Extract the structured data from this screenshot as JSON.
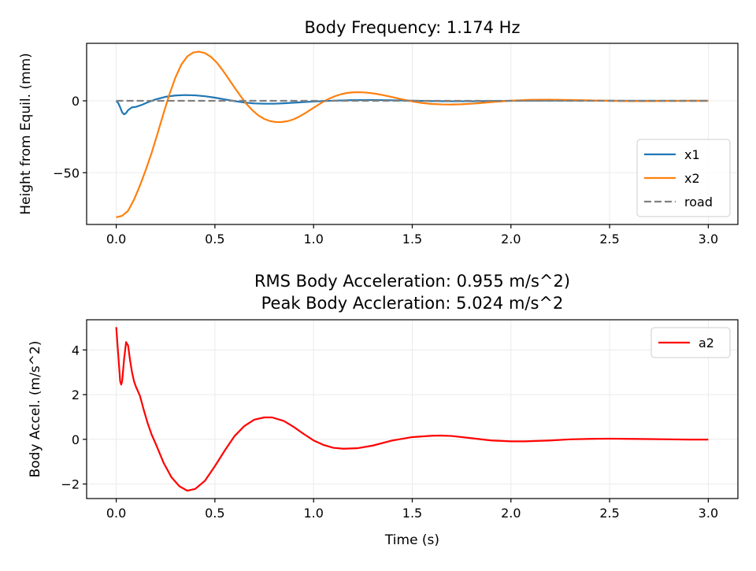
{
  "chart_data": [
    {
      "type": "line",
      "title": "Body Frequency: 1.174 Hz",
      "xlabel": "",
      "ylabel": "Height from Equil. (mm)",
      "xlim": [
        -0.15,
        3.15
      ],
      "ylim": [
        -86,
        40
      ],
      "xticks": [
        0.0,
        0.5,
        1.0,
        1.5,
        2.0,
        2.5,
        3.0
      ],
      "xtick_labels": [
        "0.0",
        "0.5",
        "1.0",
        "1.5",
        "2.0",
        "2.5",
        "3.0"
      ],
      "yticks": [
        -50,
        0
      ],
      "ytick_labels": [
        "−50",
        "0"
      ],
      "grid": true,
      "legend_position": "lower-right",
      "series": [
        {
          "name": "x1",
          "color": "#1f77b4",
          "dash": "solid",
          "x": [
            0,
            0.01,
            0.02,
            0.03,
            0.04,
            0.05,
            0.06,
            0.08,
            0.1,
            0.13,
            0.16,
            0.2,
            0.25,
            0.3,
            0.35,
            0.4,
            0.45,
            0.5,
            0.55,
            0.6,
            0.65,
            0.7,
            0.75,
            0.8,
            0.85,
            0.9,
            1.0,
            1.1,
            1.2,
            1.3,
            1.4,
            1.5,
            1.6,
            1.7,
            1.8,
            2.0,
            2.2,
            2.4,
            2.6,
            2.8,
            3.0
          ],
          "y": [
            0,
            -1.5,
            -4.5,
            -8,
            -9.4,
            -8.5,
            -6.5,
            -4.5,
            -4.2,
            -2.8,
            -1,
            1,
            2.8,
            3.7,
            4,
            3.8,
            3.2,
            2.2,
            1,
            -0.2,
            -1.2,
            -1.8,
            -2,
            -2,
            -1.7,
            -1.3,
            -0.5,
            0.1,
            0.5,
            0.6,
            0.4,
            0.1,
            -0.2,
            -0.3,
            -0.3,
            0,
            0.2,
            0.1,
            0,
            0,
            0
          ]
        },
        {
          "name": "x2",
          "color": "#ff7f0e",
          "dash": "solid",
          "x": [
            0,
            0.03,
            0.06,
            0.09,
            0.12,
            0.15,
            0.18,
            0.21,
            0.24,
            0.27,
            0.3,
            0.33,
            0.36,
            0.39,
            0.42,
            0.45,
            0.48,
            0.51,
            0.54,
            0.57,
            0.6,
            0.63,
            0.66,
            0.69,
            0.72,
            0.75,
            0.78,
            0.81,
            0.84,
            0.87,
            0.9,
            0.93,
            0.96,
            0.99,
            1.02,
            1.05,
            1.08,
            1.11,
            1.14,
            1.17,
            1.2,
            1.23,
            1.26,
            1.29,
            1.32,
            1.35,
            1.4,
            1.45,
            1.5,
            1.55,
            1.6,
            1.65,
            1.7,
            1.75,
            1.8,
            1.85,
            1.9,
            2.0,
            2.1,
            2.15,
            2.2,
            2.3,
            2.4,
            2.5,
            2.6,
            2.7,
            2.8,
            2.9,
            3.0
          ],
          "y": [
            -81,
            -80,
            -76.5,
            -68.8,
            -59,
            -48,
            -35.9,
            -22.5,
            -8.6,
            4.7,
            16.2,
            25.2,
            30.9,
            33.6,
            34.2,
            33.2,
            30.6,
            26.5,
            21.2,
            15.2,
            9.1,
            3.3,
            -2.2,
            -6.6,
            -10.1,
            -12.6,
            -14.1,
            -14.8,
            -14.7,
            -14.1,
            -12.8,
            -10.8,
            -8.4,
            -5.7,
            -3.1,
            -0.6,
            1.6,
            3.3,
            4.6,
            5.5,
            5.9,
            6,
            5.8,
            5.4,
            4.8,
            4,
            2.6,
            1,
            -0.4,
            -1.5,
            -2.2,
            -2.5,
            -2.6,
            -2.4,
            -2,
            -1.5,
            -0.9,
            0.1,
            0.7,
            0.8,
            0.8,
            0.6,
            0.3,
            0,
            -0.2,
            -0.2,
            -0.1,
            0,
            0
          ]
        },
        {
          "name": "road",
          "color": "#808080",
          "dash": "dashed",
          "x": [
            0,
            3
          ],
          "y": [
            0,
            0
          ]
        }
      ]
    },
    {
      "type": "line",
      "title": "RMS Body Acceleration: 0.955 m/s^2)\n Peak Body Accleration: 5.024 m/s^2",
      "title_lines": [
        "RMS Body Acceleration: 0.955 m/s^2)",
        "Peak Body Accleration: 5.024 m/s^2"
      ],
      "xlabel": "Time (s)",
      "ylabel": "Body Accel. (m/s^2)",
      "xlim": [
        -0.15,
        3.15
      ],
      "ylim": [
        -2.65,
        5.35
      ],
      "xticks": [
        0.0,
        0.5,
        1.0,
        1.5,
        2.0,
        2.5,
        3.0
      ],
      "xtick_labels": [
        "0.0",
        "0.5",
        "1.0",
        "1.5",
        "2.0",
        "2.5",
        "3.0"
      ],
      "yticks": [
        -2,
        0,
        2,
        4
      ],
      "ytick_labels": [
        "−2",
        "0",
        "2",
        "4"
      ],
      "grid": true,
      "legend_position": "upper-right",
      "series": [
        {
          "name": "a2",
          "color": "#ff0000",
          "dash": "solid",
          "x": [
            0,
            0.01,
            0.02,
            0.025,
            0.03,
            0.04,
            0.05,
            0.06,
            0.07,
            0.08,
            0.09,
            0.1,
            0.12,
            0.14,
            0.16,
            0.18,
            0.2,
            0.24,
            0.28,
            0.32,
            0.36,
            0.4,
            0.45,
            0.5,
            0.55,
            0.6,
            0.65,
            0.7,
            0.75,
            0.79,
            0.85,
            0.9,
            0.95,
            1.0,
            1.05,
            1.1,
            1.15,
            1.22,
            1.3,
            1.4,
            1.5,
            1.6,
            1.64,
            1.7,
            1.8,
            1.9,
            2.0,
            2.07,
            2.2,
            2.3,
            2.4,
            2.5,
            2.6,
            2.7,
            2.8,
            2.9,
            3.0
          ],
          "y": [
            5.02,
            3.8,
            2.6,
            2.45,
            2.6,
            3.6,
            4.35,
            4.2,
            3.55,
            3.0,
            2.6,
            2.35,
            1.95,
            1.3,
            0.7,
            0.2,
            -0.2,
            -1.05,
            -1.7,
            -2.1,
            -2.3,
            -2.22,
            -1.85,
            -1.2,
            -0.5,
            0.15,
            0.6,
            0.88,
            0.98,
            0.98,
            0.82,
            0.55,
            0.24,
            -0.05,
            -0.25,
            -0.38,
            -0.42,
            -0.4,
            -0.28,
            -0.05,
            0.1,
            0.16,
            0.17,
            0.15,
            0.05,
            -0.05,
            -0.09,
            -0.09,
            -0.05,
            0,
            0.02,
            0.03,
            0.02,
            0.01,
            0,
            -0.01,
            -0.01
          ]
        }
      ]
    }
  ]
}
